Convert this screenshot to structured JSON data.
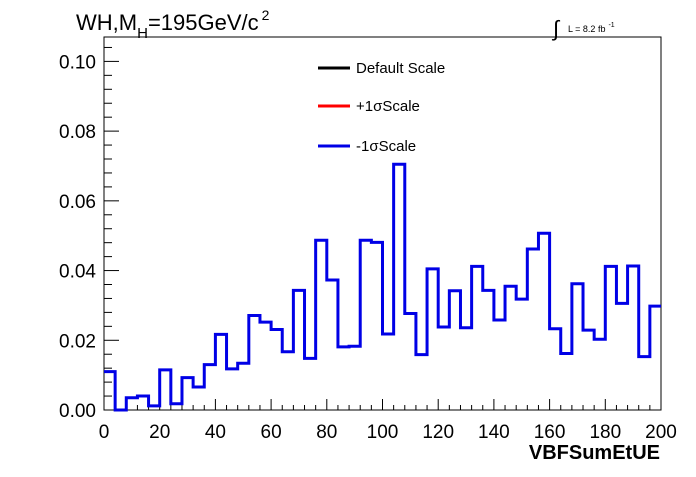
{
  "chart_data": {
    "type": "step",
    "title_main": "WH,M",
    "title_sub": "H",
    "title_rest": "=195GeV/c",
    "title_sup": "2",
    "lumi_label": "L = 8.2 fb",
    "lumi_sup": "-1",
    "xlabel": "VBFSumEtUE",
    "xlim": [
      0,
      200
    ],
    "ylim": [
      0,
      0.107
    ],
    "x_ticks": [
      0,
      20,
      40,
      60,
      80,
      100,
      120,
      140,
      160,
      180,
      200
    ],
    "x_tick_labels": [
      "0",
      "20",
      "40",
      "60",
      "80",
      "100",
      "120",
      "140",
      "160",
      "180",
      "200"
    ],
    "y_ticks": [
      0.0,
      0.02,
      0.04,
      0.06,
      0.08,
      0.1
    ],
    "y_tick_labels": [
      "0.00",
      "0.02",
      "0.04",
      "0.06",
      "0.08",
      "0.10"
    ],
    "bin_width": 4,
    "colors": {
      "default": "#000000",
      "plus": "#ff0000",
      "minus": "#0000e6"
    },
    "legend": [
      {
        "label": "Default Scale",
        "color": "#000000"
      },
      {
        "label": "+1σScale",
        "color": "#ff0000"
      },
      {
        "label": "-1σScale",
        "color": "#0000e6"
      }
    ],
    "series": [
      {
        "name": "-1σScale",
        "values": [
          0.011,
          0.0,
          0.0035,
          0.004,
          0.0012,
          0.0115,
          0.0018,
          0.0093,
          0.0066,
          0.013,
          0.0217,
          0.0118,
          0.0134,
          0.0271,
          0.0252,
          0.0231,
          0.0167,
          0.0343,
          0.0148,
          0.0487,
          0.0373,
          0.0181,
          0.0183,
          0.0487,
          0.0481,
          0.0218,
          0.0705,
          0.0277,
          0.0159,
          0.0405,
          0.0238,
          0.0342,
          0.0236,
          0.0412,
          0.0343,
          0.0258,
          0.0355,
          0.0318,
          0.0462,
          0.0507,
          0.0233,
          0.0162,
          0.0362,
          0.0229,
          0.0203,
          0.0412,
          0.0306,
          0.0413,
          0.0153,
          0.0298
        ]
      }
    ]
  }
}
